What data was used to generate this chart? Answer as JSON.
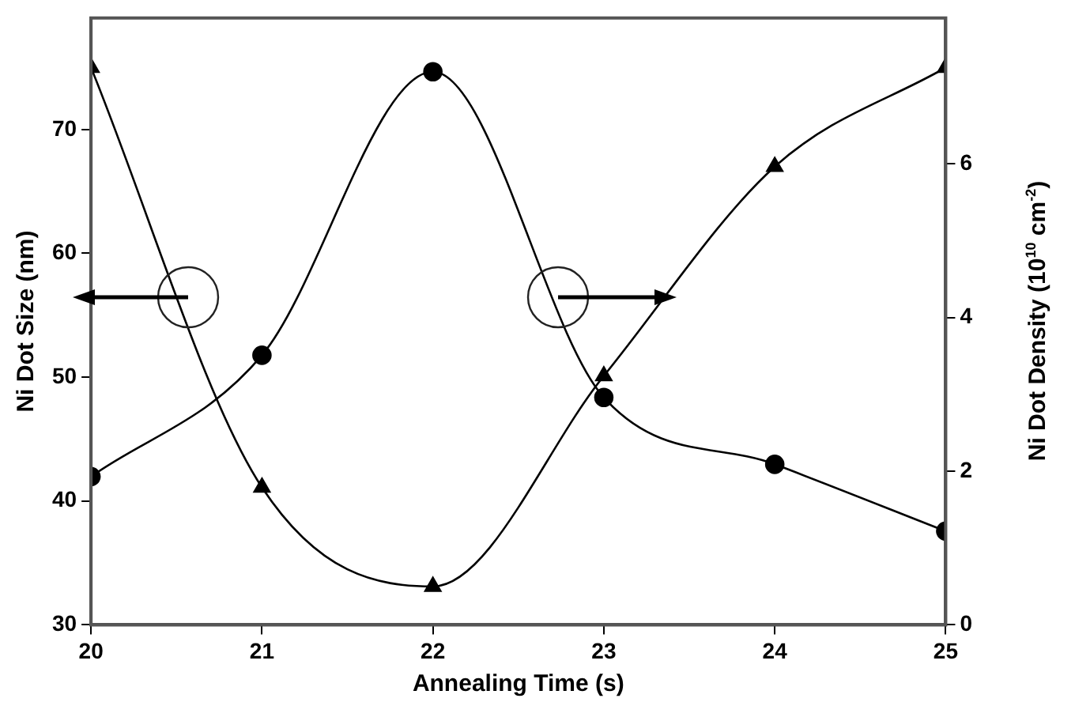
{
  "chart_data": {
    "type": "line",
    "xlabel": "Annealing Time (s)",
    "ylabel": "Ni Dot Size (nm)",
    "y2label": "Ni Dot Density (10$^{10}$ cm$^{-2}$)",
    "x": [
      20,
      21,
      22,
      23,
      24,
      25
    ],
    "series": [
      {
        "color": "#000000",
        "marker": "triangle",
        "values": [
          75.0,
          41.1,
          33.1,
          50.1,
          67.0,
          75.0
        ]
      },
      {
        "color": "#000000",
        "marker": "circle",
        "axis": "y2",
        "values": [
          1.93,
          3.51,
          7.2,
          2.96,
          2.09,
          1.22
        ]
      }
    ],
    "xlim": [
      20,
      25
    ],
    "xticks": [
      20,
      21,
      22,
      23,
      24,
      25
    ],
    "ylim": [
      30,
      79
    ],
    "yticks": [
      30,
      40,
      50,
      60,
      70
    ],
    "y2lim": [
      0,
      7.9
    ],
    "y2ticks": [
      0,
      2,
      4,
      6
    ],
    "grid": false,
    "legend": false
  }
}
